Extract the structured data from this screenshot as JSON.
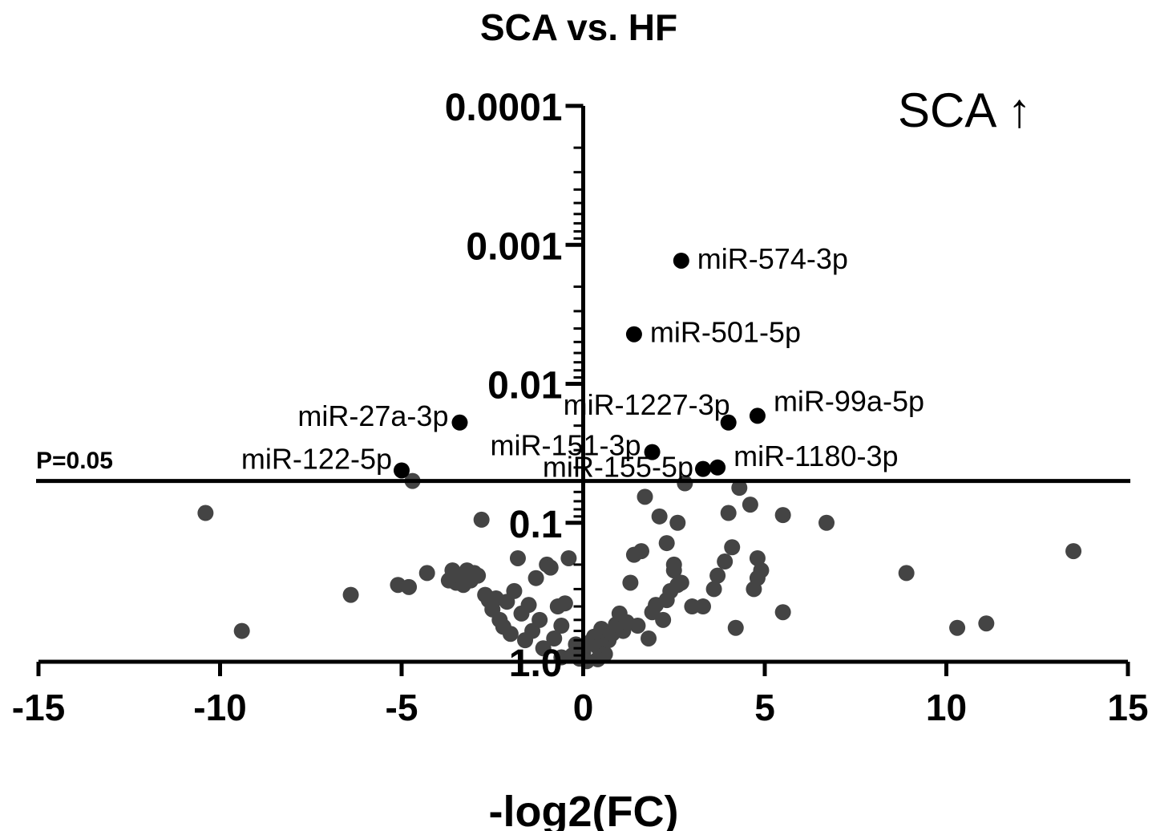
{
  "chart_data": {
    "type": "scatter",
    "title": "SCA vs. HF",
    "xlabel": "-log2(FC)",
    "ylabel": "",
    "xlim": [
      -15,
      15
    ],
    "ylim": [
      1.0,
      0.0001
    ],
    "y_scale": "log-reversed",
    "x_ticks": [
      {
        "value": -15,
        "label": "-15"
      },
      {
        "value": -10,
        "label": "-10"
      },
      {
        "value": -5,
        "label": "-5"
      },
      {
        "value": 0,
        "label": "0"
      },
      {
        "value": 5,
        "label": "5"
      },
      {
        "value": 10,
        "label": "10"
      },
      {
        "value": 15,
        "label": "15"
      }
    ],
    "y_ticks": [
      {
        "value": 0.0001,
        "label": "0.0001"
      },
      {
        "value": 0.001,
        "label": "0.001"
      },
      {
        "value": 0.01,
        "label": "0.01"
      },
      {
        "value": 0.1,
        "label": "0.1"
      },
      {
        "value": 1.0,
        "label": "1.0"
      }
    ],
    "annotation": "SCA ↑",
    "threshold": {
      "p": 0.05,
      "label": "P=0.05"
    },
    "significant_color": "#000000",
    "nonsignificant_color": "#444444",
    "significant_points": [
      {
        "label": "miR-574-3p",
        "x": 2.7,
        "p": 0.0013
      },
      {
        "label": "miR-501-5p",
        "x": 1.4,
        "p": 0.0044
      },
      {
        "label": "miR-99a-5p",
        "x": 4.8,
        "p": 0.017
      },
      {
        "label": "miR-1227-3p",
        "x": 4.0,
        "p": 0.019
      },
      {
        "label": "miR-27a-3p",
        "x": -3.4,
        "p": 0.019
      },
      {
        "label": "miR-151-3p",
        "x": 1.9,
        "p": 0.031
      },
      {
        "label": "miR-1180-3p",
        "x": 3.7,
        "p": 0.04
      },
      {
        "label": "miR-155-5p",
        "x": 3.3,
        "p": 0.041
      },
      {
        "label": "miR-122-5p",
        "x": -5.0,
        "p": 0.042
      }
    ],
    "nonsignificant_points": [
      {
        "x": -10.4,
        "p": 0.085
      },
      {
        "x": -9.4,
        "p": 0.6
      },
      {
        "x": -6.4,
        "p": 0.33
      },
      {
        "x": -5.1,
        "p": 0.28
      },
      {
        "x": -4.8,
        "p": 0.29
      },
      {
        "x": -4.7,
        "p": 0.05
      },
      {
        "x": -4.3,
        "p": 0.23
      },
      {
        "x": -3.7,
        "p": 0.26
      },
      {
        "x": -3.6,
        "p": 0.22
      },
      {
        "x": -3.5,
        "p": 0.27
      },
      {
        "x": -3.4,
        "p": 0.24
      },
      {
        "x": -3.3,
        "p": 0.28
      },
      {
        "x": -3.2,
        "p": 0.22
      },
      {
        "x": -3.1,
        "p": 0.26
      },
      {
        "x": -3.0,
        "p": 0.23
      },
      {
        "x": -2.9,
        "p": 0.24
      },
      {
        "x": -2.8,
        "p": 0.095
      },
      {
        "x": -2.7,
        "p": 0.33
      },
      {
        "x": -2.6,
        "p": 0.36
      },
      {
        "x": -2.5,
        "p": 0.42
      },
      {
        "x": -2.4,
        "p": 0.35
      },
      {
        "x": -2.3,
        "p": 0.5
      },
      {
        "x": -2.2,
        "p": 0.56
      },
      {
        "x": -2.1,
        "p": 0.37
      },
      {
        "x": -2.0,
        "p": 0.63
      },
      {
        "x": -1.9,
        "p": 0.31
      },
      {
        "x": -1.8,
        "p": 0.18
      },
      {
        "x": -1.7,
        "p": 0.45
      },
      {
        "x": -1.6,
        "p": 0.7
      },
      {
        "x": -1.5,
        "p": 0.39
      },
      {
        "x": -1.4,
        "p": 0.6
      },
      {
        "x": -1.3,
        "p": 0.25
      },
      {
        "x": -1.2,
        "p": 0.5
      },
      {
        "x": -1.1,
        "p": 0.8
      },
      {
        "x": -1.0,
        "p": 0.2
      },
      {
        "x": -0.9,
        "p": 0.21
      },
      {
        "x": -0.8,
        "p": 0.68
      },
      {
        "x": -0.7,
        "p": 0.4
      },
      {
        "x": -0.6,
        "p": 0.55
      },
      {
        "x": -0.5,
        "p": 0.38
      },
      {
        "x": -0.4,
        "p": 0.18
      },
      {
        "x": -0.3,
        "p": 0.9
      },
      {
        "x": -0.2,
        "p": 0.75
      },
      {
        "x": -0.1,
        "p": 0.95
      },
      {
        "x": 0.0,
        "p": 0.85
      },
      {
        "x": 0.1,
        "p": 0.99
      },
      {
        "x": 0.2,
        "p": 0.72
      },
      {
        "x": 0.3,
        "p": 0.66
      },
      {
        "x": 0.4,
        "p": 0.78
      },
      {
        "x": 0.5,
        "p": 0.58
      },
      {
        "x": 0.6,
        "p": 0.88
      },
      {
        "x": 0.7,
        "p": 0.7
      },
      {
        "x": 0.8,
        "p": 0.63
      },
      {
        "x": 0.9,
        "p": 0.54
      },
      {
        "x": 1.0,
        "p": 0.45
      },
      {
        "x": 1.1,
        "p": 0.6
      },
      {
        "x": 1.2,
        "p": 0.52
      },
      {
        "x": 1.3,
        "p": 0.27
      },
      {
        "x": 1.4,
        "p": 0.17
      },
      {
        "x": 1.5,
        "p": 0.55
      },
      {
        "x": 1.6,
        "p": 0.16
      },
      {
        "x": 1.7,
        "p": 0.065
      },
      {
        "x": 1.8,
        "p": 0.68
      },
      {
        "x": 1.9,
        "p": 0.44
      },
      {
        "x": 2.0,
        "p": 0.39
      },
      {
        "x": 2.1,
        "p": 0.09
      },
      {
        "x": 2.2,
        "p": 0.5
      },
      {
        "x": 2.3,
        "p": 0.14
      },
      {
        "x": 2.4,
        "p": 0.31
      },
      {
        "x": 2.5,
        "p": 0.22
      },
      {
        "x": 2.6,
        "p": 0.1
      },
      {
        "x": 2.7,
        "p": 0.27
      },
      {
        "x": 2.8,
        "p": 0.052
      },
      {
        "x": 3.0,
        "p": 0.4
      },
      {
        "x": 3.3,
        "p": 0.4
      },
      {
        "x": 3.6,
        "p": 0.3
      },
      {
        "x": 3.7,
        "p": 0.24
      },
      {
        "x": 3.9,
        "p": 0.19
      },
      {
        "x": 4.0,
        "p": 0.085
      },
      {
        "x": 4.1,
        "p": 0.15
      },
      {
        "x": 4.2,
        "p": 0.57
      },
      {
        "x": 4.3,
        "p": 0.056
      },
      {
        "x": 4.6,
        "p": 0.074
      },
      {
        "x": 4.7,
        "p": 0.3
      },
      {
        "x": 4.8,
        "p": 0.18
      },
      {
        "x": 4.9,
        "p": 0.22
      },
      {
        "x": 5.5,
        "p": 0.088
      },
      {
        "x": 5.5,
        "p": 0.44
      },
      {
        "x": 6.7,
        "p": 0.1
      },
      {
        "x": 8.9,
        "p": 0.23
      },
      {
        "x": 10.3,
        "p": 0.57
      },
      {
        "x": 11.1,
        "p": 0.53
      },
      {
        "x": 13.5,
        "p": 0.16
      },
      {
        "x": 2.5,
        "p": 0.2
      },
      {
        "x": 2.6,
        "p": 0.28
      },
      {
        "x": 4.8,
        "p": 0.25
      },
      {
        "x": 2.3,
        "p": 0.36
      },
      {
        "x": -0.6,
        "p": 0.93
      },
      {
        "x": 0.4,
        "p": 0.96
      }
    ]
  }
}
